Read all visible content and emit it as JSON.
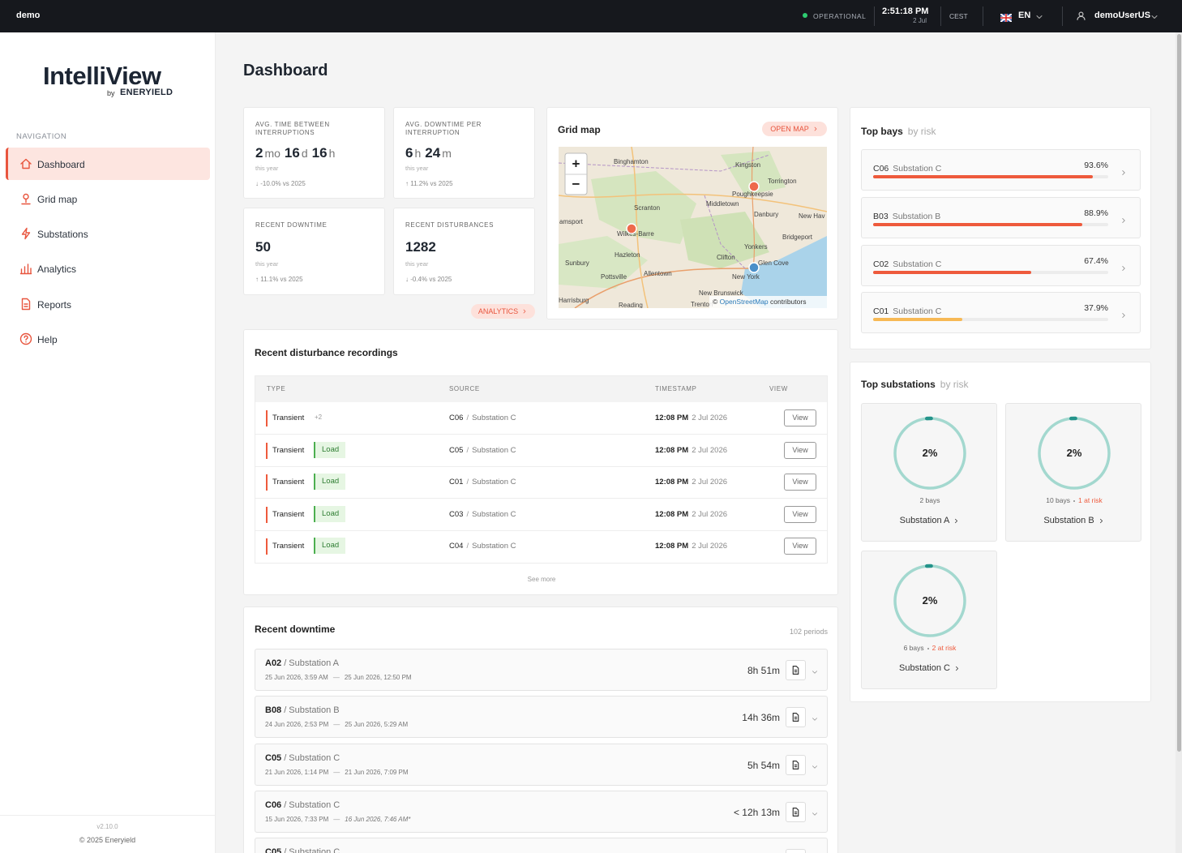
{
  "topbar": {
    "brand": "demo",
    "status": "OPERATIONAL",
    "time": "2:51:18 PM",
    "date": "2 Jul",
    "timezone": "CEST",
    "language": "EN",
    "user": "demoUserUS"
  },
  "sidebar": {
    "logo": "IntelliView",
    "logo_by": "by",
    "logo_company": "ENERYIELD",
    "nav_heading": "NAVIGATION",
    "nav": [
      "Dashboard",
      "Grid map",
      "Substations",
      "Analytics",
      "Reports",
      "Help"
    ],
    "version": "v2.10.0",
    "copyright": "© 2025 Eneryield"
  },
  "page_title": "Dashboard",
  "kpis": [
    {
      "label": "AVG. TIME BETWEEN INTERRUPTIONS",
      "value": [
        {
          "number": "2",
          "unit": "mo"
        },
        {
          "number": "16",
          "unit": "d"
        },
        {
          "number": "16",
          "unit": "h"
        }
      ],
      "period": "this year",
      "change": "↓ -10.0% vs 2025"
    },
    {
      "label": "AVG. DOWNTIME PER INTERRUPTION",
      "value": [
        {
          "number": "6",
          "unit": "h"
        },
        {
          "number": "24",
          "unit": "m"
        }
      ],
      "period": "this year",
      "change": "↑ 11.2% vs 2025"
    },
    {
      "label": "RECENT DOWNTIME",
      "value": [
        {
          "number": "50"
        }
      ],
      "period": "this year",
      "change": "↑ 11.1% vs 2025"
    },
    {
      "label": "RECENT DISTURBANCES",
      "value": [
        {
          "number": "1282"
        }
      ],
      "period": "this year",
      "change": "↓ -0.4% vs 2025"
    }
  ],
  "analytics_button": "ANALYTICS",
  "grid_map": {
    "title": "Grid map",
    "button": "OPEN MAP",
    "zoom_in": "+",
    "zoom_out": "−",
    "labels": [
      "Binghamton",
      "Kingston",
      "Torrington",
      "Poughkeepsie",
      "Scranton",
      "Middletown",
      "Danbury",
      "New Hav",
      "amsport",
      "Wilkes-Barre",
      "Bridgeport",
      "Hazleton",
      "Yonkers",
      "Clifton",
      "Glen Cove",
      "Sunbury",
      "Pottsville",
      "Allentown",
      "New York",
      "New Brunswick",
      "Trenton",
      "Reading",
      "Harrisburg"
    ],
    "attribution": {
      "symbol": "©",
      "link": "OpenStreetMap",
      "text": "contributors"
    }
  },
  "top_bays": {
    "title": "Top bays",
    "subtitle": "by risk",
    "items": [
      {
        "bay": "C06",
        "substation": "Substation C",
        "risk": 93.6,
        "risk_label": "93.6%",
        "color": "#ee5a3c"
      },
      {
        "bay": "B03",
        "substation": "Substation B",
        "risk": 88.9,
        "risk_label": "88.9%",
        "color": "#ee5a3c"
      },
      {
        "bay": "C02",
        "substation": "Substation C",
        "risk": 67.4,
        "risk_label": "67.4%",
        "color": "#ee5a3c"
      },
      {
        "bay": "C01",
        "substation": "Substation C",
        "risk": 37.9,
        "risk_label": "37.9%",
        "color": "#f7b955"
      }
    ]
  },
  "top_substations": {
    "title": "Top substations",
    "subtitle": "by risk",
    "items": [
      {
        "percent": 2,
        "percent_label": "2%",
        "bays": "2 bays",
        "name": "Substation A"
      },
      {
        "percent": 2,
        "percent_label": "2%",
        "bays": "10 bays",
        "at_risk": "1 at risk",
        "name": "Substation B"
      },
      {
        "percent": 2,
        "percent_label": "2%",
        "bays": "6 bays",
        "at_risk": "2 at risk",
        "name": "Substation C"
      }
    ]
  },
  "disturbances": {
    "title": "Recent disturbance recordings",
    "columns": [
      "TYPE",
      "SOURCE",
      "TIMESTAMP",
      "VIEW"
    ],
    "separator": "/",
    "rows": [
      {
        "type": "Transient",
        "extra": "+2",
        "bay": "C06",
        "substation": "Substation C",
        "time": "12:08 PM",
        "date": "2 Jul 2026",
        "action": "View"
      },
      {
        "type": "Transient",
        "tag": "Load",
        "bay": "C05",
        "substation": "Substation C",
        "time": "12:08 PM",
        "date": "2 Jul 2026",
        "action": "View"
      },
      {
        "type": "Transient",
        "tag": "Load",
        "bay": "C01",
        "substation": "Substation C",
        "time": "12:08 PM",
        "date": "2 Jul 2026",
        "action": "View"
      },
      {
        "type": "Transient",
        "tag": "Load",
        "bay": "C03",
        "substation": "Substation C",
        "time": "12:08 PM",
        "date": "2 Jul 2026",
        "action": "View"
      },
      {
        "type": "Transient",
        "tag": "Load",
        "bay": "C04",
        "substation": "Substation C",
        "time": "12:08 PM",
        "date": "2 Jul 2026",
        "action": "View"
      }
    ],
    "see_more": "See more"
  },
  "downtime": {
    "title": "Recent downtime",
    "count": "102 periods",
    "separator": "/",
    "range_separator": "—",
    "rows": [
      {
        "bay": "A02",
        "substation": "Substation A",
        "start": "25 Jun 2026, 3:59 AM",
        "end": "25 Jun 2026, 12:50 PM",
        "duration": "8h 51m"
      },
      {
        "bay": "B08",
        "substation": "Substation B",
        "start": "24 Jun 2026, 2:53 PM",
        "end": "25 Jun 2026, 5:29 AM",
        "duration": "14h 36m"
      },
      {
        "bay": "C05",
        "substation": "Substation C",
        "start": "21 Jun 2026, 1:14 PM",
        "end": "21 Jun 2026, 7:09 PM",
        "duration": "5h 54m"
      },
      {
        "bay": "C06",
        "substation": "Substation C",
        "start": "15 Jun 2026, 7:33 PM",
        "end": "16 Jun 2026, 7:46 AM*",
        "duration": "< 12h 13m"
      },
      {
        "bay": "C05",
        "substation": "Substation C"
      }
    ]
  }
}
